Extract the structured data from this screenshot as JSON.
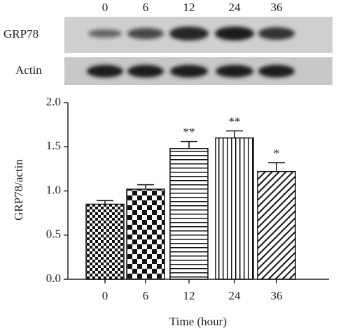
{
  "blot": {
    "lanes": [
      "0",
      "6",
      "12",
      "24",
      "36"
    ],
    "rows": [
      "GRP78",
      "Actin"
    ]
  },
  "chart_data": {
    "type": "bar",
    "ylabel": "GRP78/actin",
    "xlabel": "Time (hour)",
    "categories": [
      "0",
      "6",
      "12",
      "24",
      "36"
    ],
    "values": [
      0.85,
      1.02,
      1.48,
      1.6,
      1.22
    ],
    "errors": [
      0.04,
      0.05,
      0.08,
      0.08,
      0.1
    ],
    "annotations": [
      null,
      null,
      "**",
      "**",
      "*"
    ],
    "color": "#111111",
    "ylim": [
      0,
      2.0
    ],
    "yticks": [
      {
        "value": 0,
        "label": "0.0"
      },
      {
        "value": 0.5,
        "label": "0.5"
      },
      {
        "value": 1.0,
        "label": "1.0"
      },
      {
        "value": 1.5,
        "label": "1.5"
      },
      {
        "value": 2.0,
        "label": "2.0"
      }
    ]
  }
}
